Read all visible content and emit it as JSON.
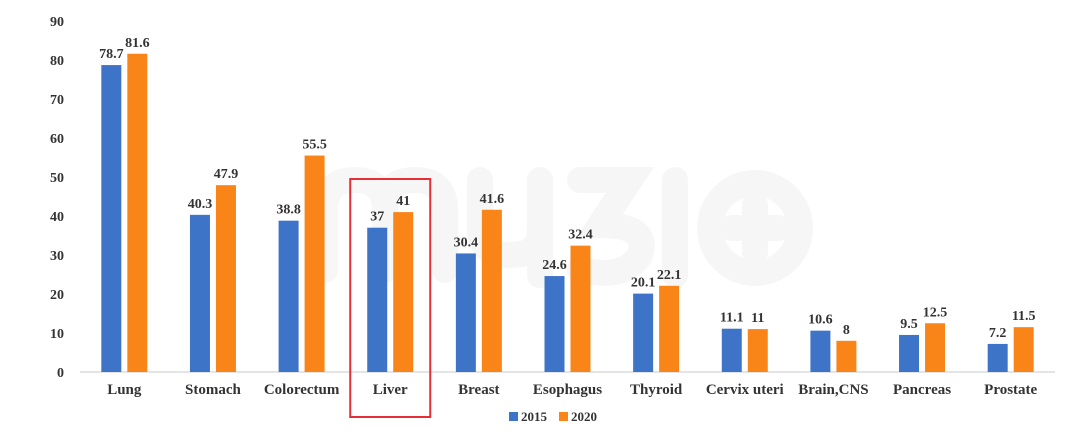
{
  "chart_data": {
    "type": "bar",
    "categories": [
      "Lung",
      "Stomach",
      "Colorectum",
      "Liver",
      "Breast",
      "Esophagus",
      "Thyroid",
      "Cervix uteri",
      "Brain,CNS",
      "Pancreas",
      "Prostate"
    ],
    "series": [
      {
        "name": "2015",
        "values": [
          78.7,
          40.3,
          38.8,
          37,
          30.4,
          24.6,
          20.1,
          11.1,
          10.6,
          9.5,
          7.2
        ],
        "labels": [
          "78.7",
          "40.3",
          "38.8",
          "37",
          "30.4",
          "24.6",
          "20.1",
          "11.1",
          "10.6",
          "9.5",
          "7.2"
        ]
      },
      {
        "name": "2020",
        "values": [
          81.6,
          47.9,
          55.5,
          41,
          41.6,
          32.4,
          22.1,
          11,
          8,
          12.5,
          11.5
        ],
        "labels": [
          "81.6",
          "47.9",
          "55.5",
          "41",
          "41.6",
          "32.4",
          "22.1",
          "11",
          "8",
          "12.5",
          "11.5"
        ]
      }
    ],
    "ylim": [
      0,
      90
    ],
    "yticks": [
      "0",
      "10",
      "20",
      "30",
      "40",
      "50",
      "60",
      "70",
      "80",
      "90"
    ],
    "grid": false,
    "legend": "bottom-center",
    "highlighted_category": "Liver",
    "colors": {
      "2015": "#3d74c8",
      "2020": "#f98519",
      "highlight_box": "#e53036",
      "axis": "#c9c9c9"
    },
    "watermark": {
      "text": "myBio 美柏医健",
      "style": "faint-logo"
    }
  }
}
